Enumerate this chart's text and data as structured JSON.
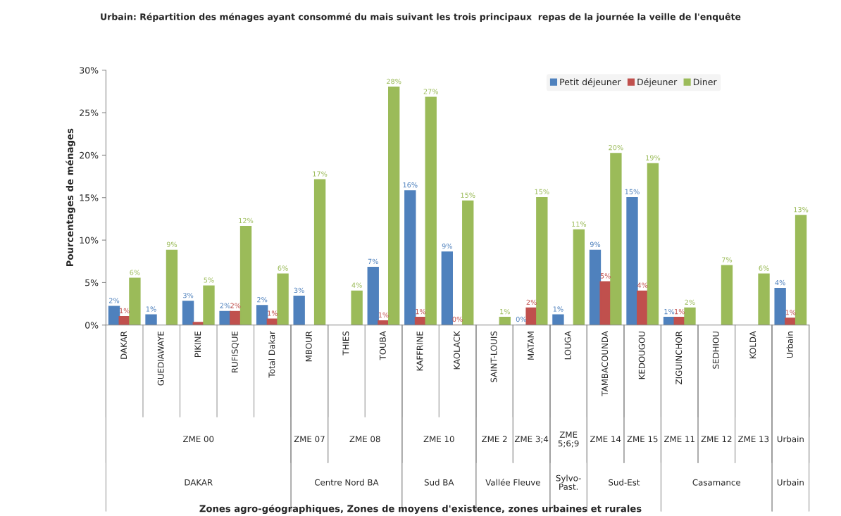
{
  "chart_data": {
    "type": "bar",
    "title": "Urbain: Répartition des ménages ayant consommé du mais suivant les trois principaux  repas de la journée la veille de l'enquête",
    "ylabel": "Pourcentages de ménages",
    "categories": [
      "DAKAR",
      "GUEDIAWAYE",
      "PIKINE",
      "RUFISQUE",
      "Total Dakar",
      "MBOUR",
      "THIES",
      "TOUBA",
      "KAFFRINE",
      "KAOLACK",
      "SAINT-LOUIS",
      "MATAM",
      "LOUGA",
      "TAMBACOUNDA",
      "KEDOUGOU",
      "ZIGUINCHOR",
      "SEDHIOU",
      "KOLDA",
      "Urbain"
    ],
    "series": [
      {
        "name": "Petit déjeuner",
        "color": "#4f81bd",
        "values": [
          2.2,
          1.2,
          2.8,
          1.6,
          2.3,
          3.4,
          null,
          6.8,
          15.8,
          8.6,
          null,
          0.0,
          1.2,
          8.8,
          15.0,
          0.9,
          null,
          null,
          4.3
        ],
        "value_labels": [
          "2%",
          "1%",
          "3%",
          "2%",
          "2%",
          "3%",
          null,
          "7%",
          "16%",
          "9%",
          null,
          "0%",
          "1%",
          "9%",
          "15%",
          "1%",
          null,
          null,
          "4%"
        ]
      },
      {
        "name": "Déjeuner",
        "color": "#c0504d",
        "values": [
          1.0,
          null,
          0.3,
          1.6,
          0.7,
          null,
          null,
          0.5,
          0.9,
          0.0,
          null,
          2.0,
          null,
          5.1,
          4.0,
          0.9,
          null,
          null,
          0.8
        ],
        "value_labels": [
          "1%",
          null,
          null,
          "2%",
          "1%",
          null,
          null,
          "1%",
          "1%",
          "0%",
          null,
          "2%",
          null,
          "5%",
          "4%",
          "1%",
          null,
          null,
          "1%"
        ]
      },
      {
        "name": "Diner",
        "color": "#9bbb59",
        "values": [
          5.5,
          8.8,
          4.6,
          11.6,
          6.0,
          17.1,
          4.0,
          28.0,
          26.8,
          14.6,
          0.9,
          15.0,
          11.2,
          20.2,
          19.0,
          2.0,
          7.0,
          6.0,
          12.9
        ],
        "value_labels": [
          "6%",
          "9%",
          "5%",
          "12%",
          "6%",
          "17%",
          "4%",
          "28%",
          "27%",
          "15%",
          "1%",
          "15%",
          "11%",
          "20%",
          "19%",
          "2%",
          "7%",
          "6%",
          "13%"
        ]
      }
    ],
    "ylim": [
      0,
      30
    ],
    "yticks": [
      {
        "value": 0,
        "label": "0%"
      },
      {
        "value": 5,
        "label": "5%"
      },
      {
        "value": 10,
        "label": "10%"
      },
      {
        "value": 15,
        "label": "15%"
      },
      {
        "value": 20,
        "label": "20%"
      },
      {
        "value": 25,
        "label": "25%"
      },
      {
        "value": 30,
        "label": "30%"
      }
    ],
    "grid": false,
    "legend": "top right",
    "annotations": [
      "ZME 00",
      "ZME 07",
      "ZME 08",
      "ZME 10",
      "ZME 2",
      "ZME 3;4",
      "ZME\n5;6;9",
      "ZME 14",
      "ZME 15",
      "ZME 11",
      "ZME 12",
      "ZME 13",
      "Urbain",
      "DAKAR",
      "Centre Nord BA",
      "Sud BA",
      "Vallée Fleuve",
      "Sylvo-\nPast.",
      "Sud-Est",
      "Casamance",
      "Urbain",
      "Zones agro-géographiques, Zones de moyens d'existence, zones urbaines et rurales"
    ]
  }
}
